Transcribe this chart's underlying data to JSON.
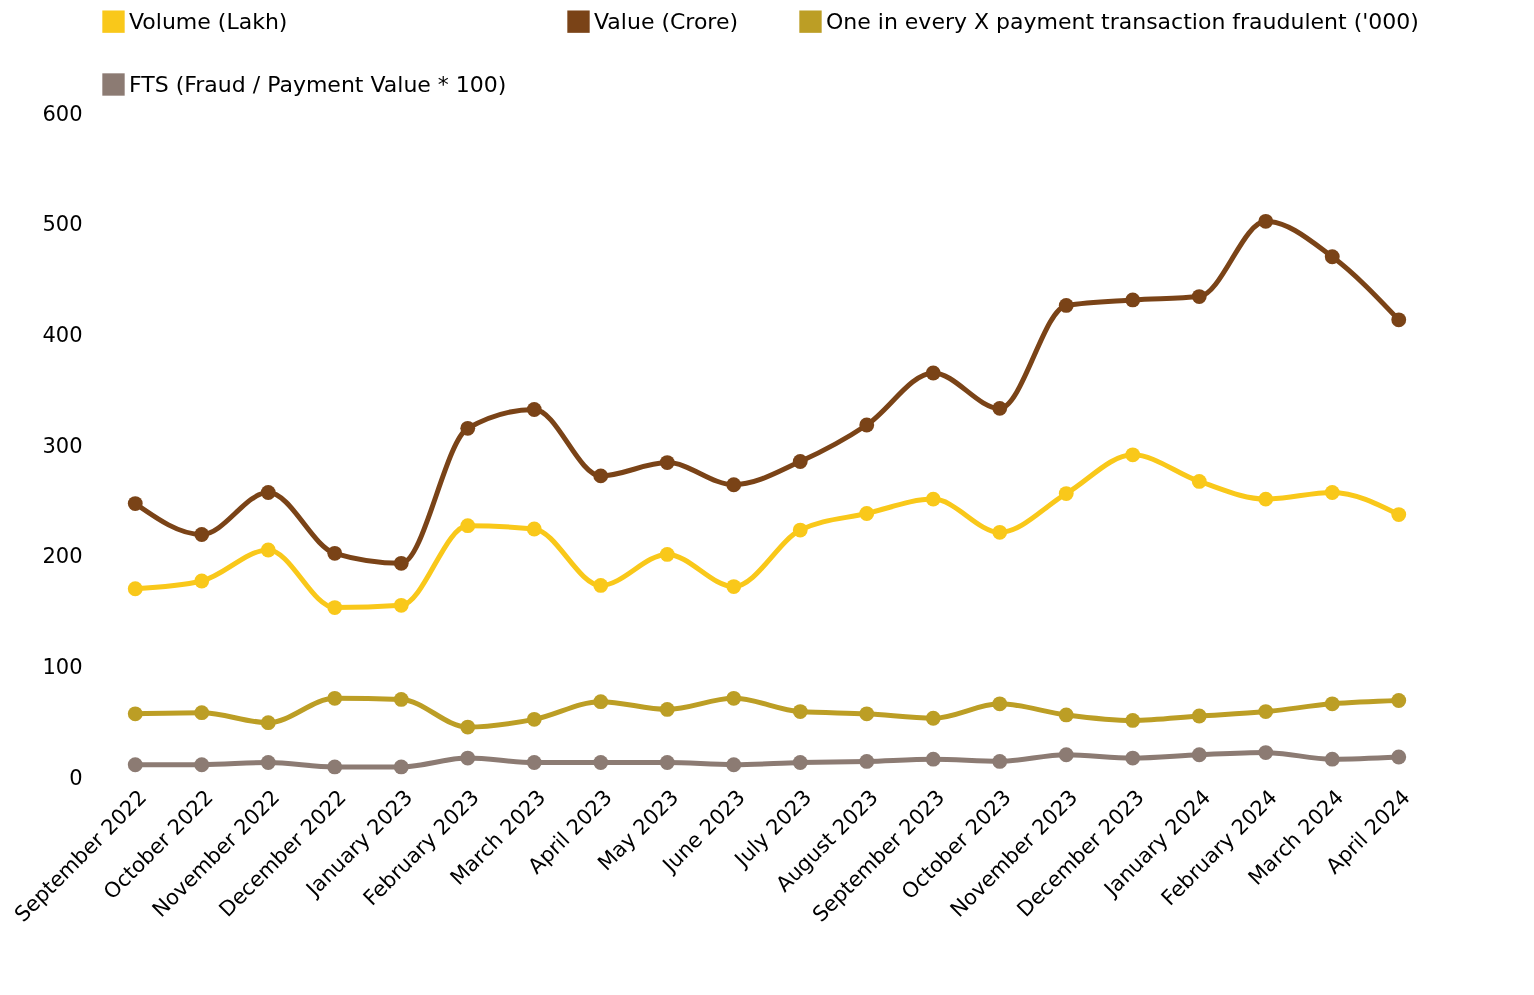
{
  "chart_data": {
    "type": "line",
    "categories": [
      "September 2022",
      "October 2022",
      "November 2022",
      "December 2022",
      "January 2023",
      "February 2023",
      "March 2023",
      "April 2023",
      "May 2023",
      "June 2023",
      "July 2023",
      "August 2023",
      "September 2023",
      "October 2023",
      "November 2023",
      "December 2023",
      "January 2024",
      "February 2024",
      "March 2024",
      "April 2024"
    ],
    "series": [
      {
        "name": "Volume (Lakh)",
        "color": "#f9c81a",
        "values": [
          171,
          178,
          206,
          154,
          156,
          228,
          225,
          174,
          202,
          173,
          224,
          239,
          252,
          222,
          257,
          292,
          268,
          252,
          258,
          238
        ]
      },
      {
        "name": "Value (Crore)",
        "color": "#7a4317",
        "values": [
          248,
          220,
          258,
          203,
          194,
          316,
          333,
          273,
          285,
          265,
          286,
          319,
          366,
          334,
          427,
          432,
          435,
          503,
          471,
          414
        ]
      },
      {
        "name": "One in every X payment transaction fraudulent ('000)",
        "color": "#bc9e25",
        "values": [
          58,
          59,
          50,
          72,
          71,
          46,
          53,
          69,
          62,
          72,
          60,
          58,
          54,
          67,
          57,
          52,
          56,
          60,
          67,
          70
        ]
      },
      {
        "name": "FTS (Fraud / Payment Value * 100)",
        "color": "#8c7b73",
        "values": [
          12,
          12,
          14,
          10,
          10,
          18,
          14,
          14,
          14,
          12,
          14,
          15,
          17,
          15,
          21,
          18,
          21,
          23,
          17,
          19
        ]
      }
    ],
    "ylim": [
      0,
      600
    ],
    "yticks": [
      0,
      100,
      200,
      300,
      400,
      500,
      600
    ],
    "grid": false,
    "legend": "top",
    "marker": "circle"
  }
}
